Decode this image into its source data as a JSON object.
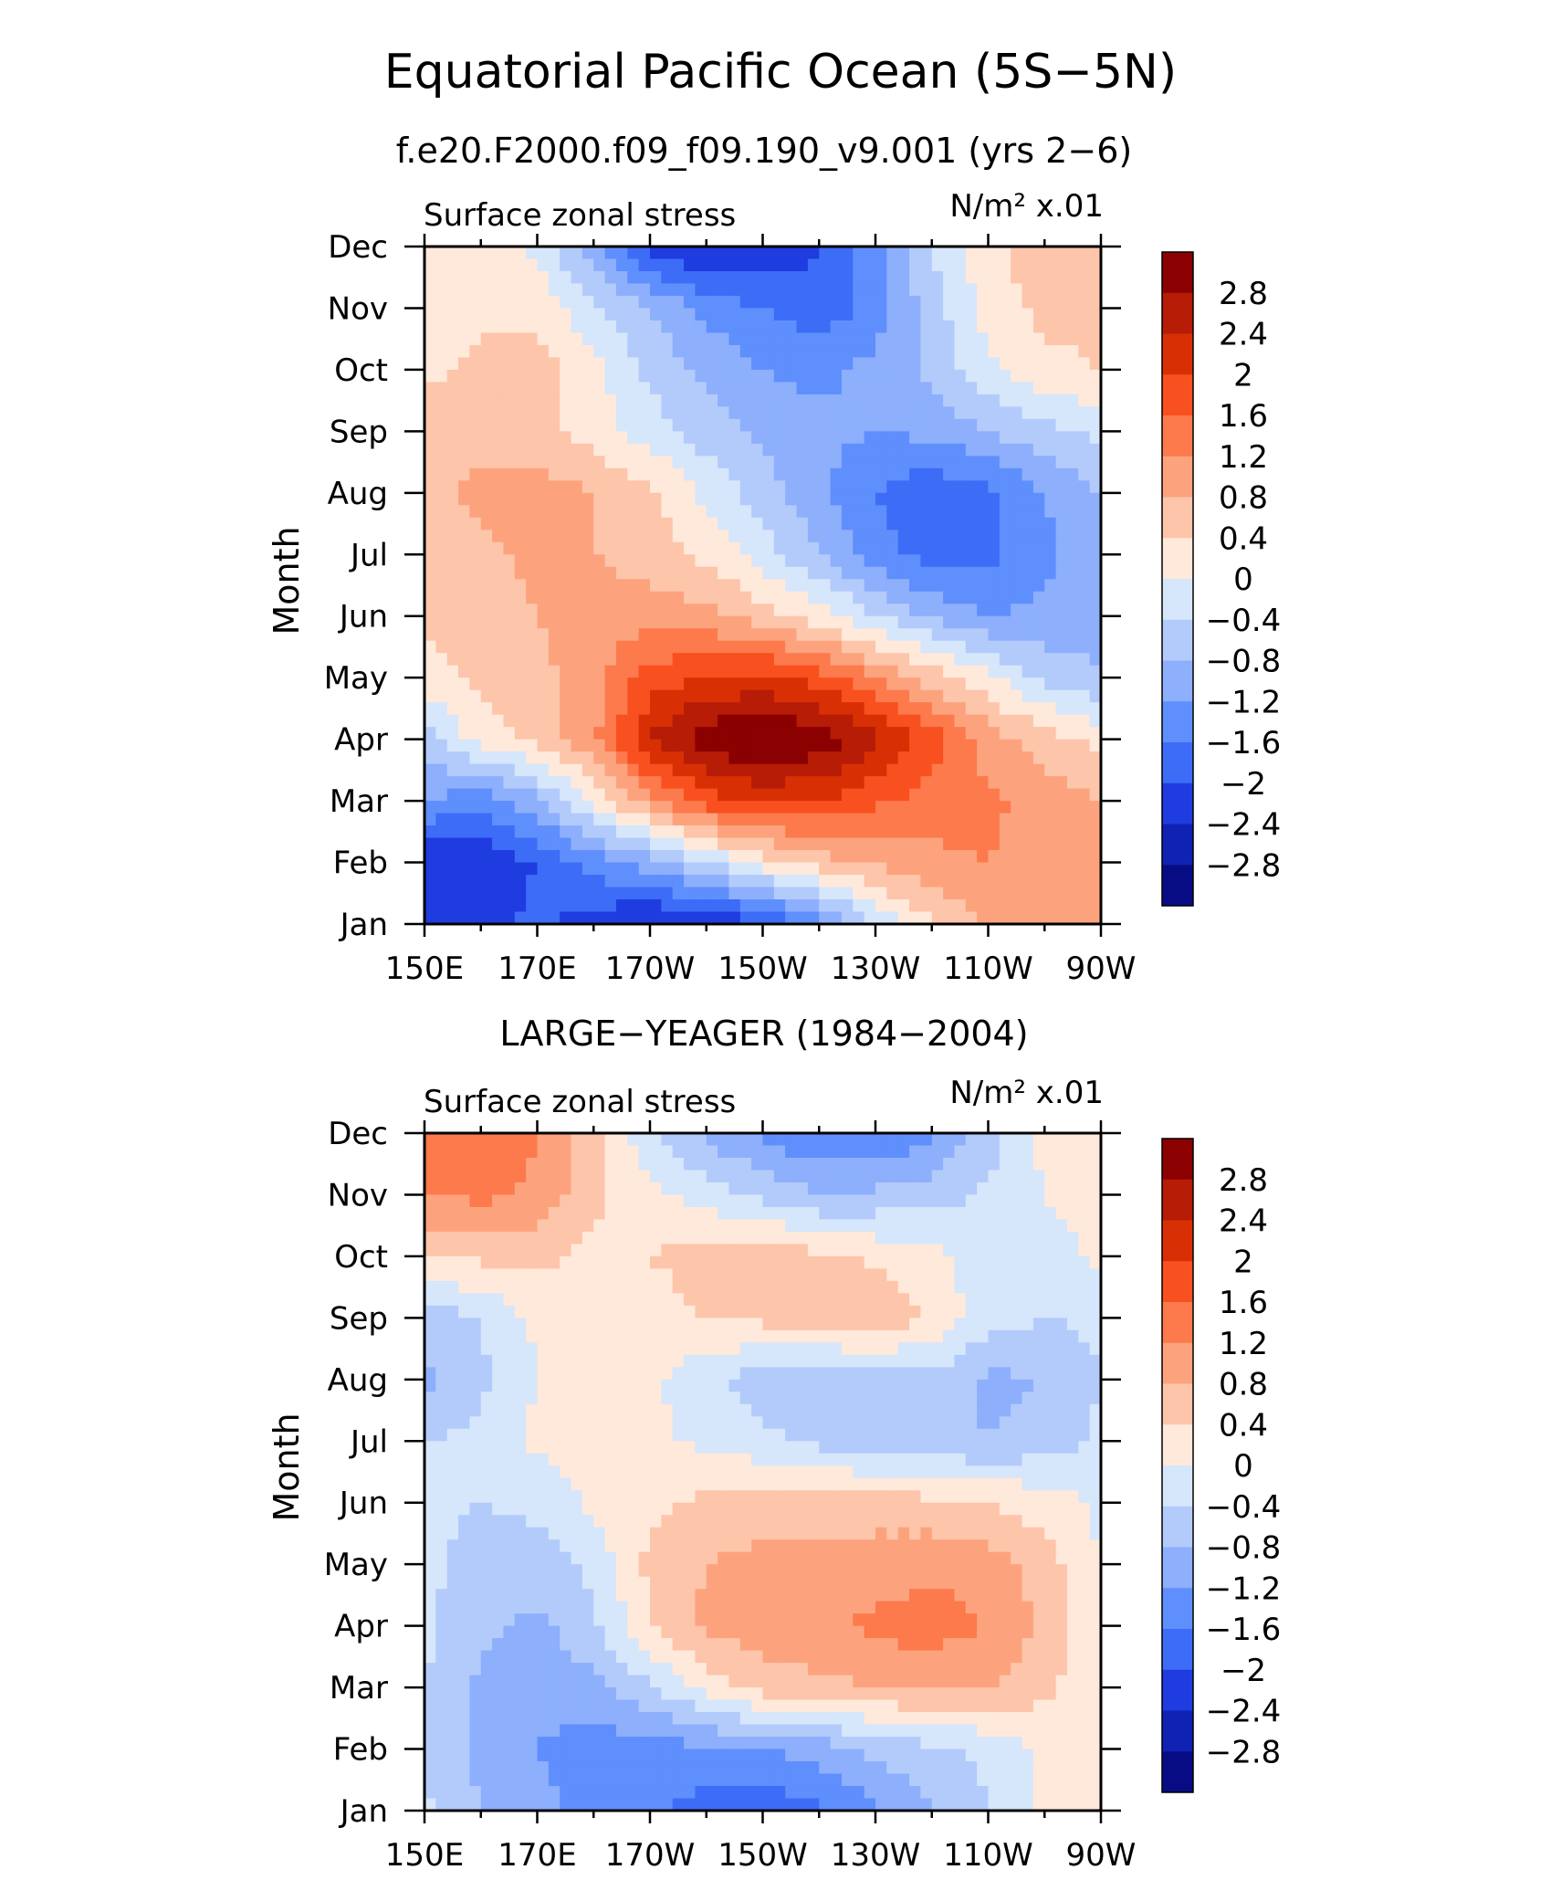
{
  "title": "Equatorial Pacific Ocean (5S−5N)",
  "chart_data": [
    {
      "type": "heatmap",
      "subtitle": "f.e20.F2000.f09_f09.190_v9.001 (yrs 2−6)",
      "field_label": "Surface zonal stress",
      "units_label": "N/m² x.01",
      "ylabel": "Month",
      "xlabel": "",
      "x_ticks": [
        "150E",
        "170E",
        "170W",
        "150W",
        "130W",
        "110W",
        "90W"
      ],
      "x_tick_lon": [
        150,
        170,
        190,
        210,
        230,
        250,
        270
      ],
      "y_ticks": [
        "Jan",
        "Feb",
        "Mar",
        "Apr",
        "May",
        "Jun",
        "Jul",
        "Aug",
        "Sep",
        "Oct",
        "Nov",
        "Dec"
      ],
      "xlim": [
        150,
        270
      ],
      "ylim": [
        1,
        12
      ],
      "levels": [
        -2.8,
        -2.4,
        -2,
        -1.6,
        -1.2,
        -0.8,
        -0.4,
        0,
        0.4,
        0.8,
        1.2,
        1.6,
        2,
        2.4,
        2.8
      ],
      "lon": [
        150,
        160,
        170,
        180,
        190,
        200,
        210,
        220,
        230,
        240,
        250,
        260,
        270
      ],
      "values": [
        [
          -2.1,
          -2.2,
          -1.9,
          -2.2,
          -2.5,
          -2.4,
          -2.1,
          -1.4,
          -0.4,
          0.4,
          0.8,
          0.9,
          0.8
        ],
        [
          -2.4,
          -2.3,
          -2.0,
          -1.4,
          -1.0,
          -0.4,
          0.2,
          0.6,
          0.9,
          1.1,
          1.2,
          1.1,
          0.8
        ],
        [
          -1.2,
          -1.5,
          -0.9,
          0.1,
          1.1,
          1.8,
          2.1,
          2.0,
          1.7,
          1.4,
          1.3,
          1.0,
          0.8
        ],
        [
          -0.6,
          0.2,
          0.5,
          1.1,
          2.4,
          3.1,
          3.3,
          3.1,
          2.5,
          1.8,
          1.0,
          0.6,
          0.3
        ],
        [
          0.2,
          0.5,
          0.7,
          1.0,
          1.8,
          2.0,
          2.1,
          1.8,
          1.2,
          0.6,
          0.1,
          -0.5,
          -0.8
        ],
        [
          0.5,
          0.6,
          0.8,
          1.0,
          1.0,
          0.9,
          0.6,
          0.2,
          -0.4,
          -0.9,
          -1.2,
          -1.1,
          -0.9
        ],
        [
          0.6,
          0.7,
          0.9,
          0.8,
          0.6,
          0.3,
          -0.2,
          -0.8,
          -1.4,
          -1.8,
          -1.7,
          -1.3,
          -0.9
        ],
        [
          0.7,
          0.9,
          1.0,
          0.8,
          0.5,
          -0.1,
          -0.6,
          -1.1,
          -1.6,
          -1.9,
          -1.7,
          -1.2,
          -0.8
        ],
        [
          0.6,
          0.7,
          0.5,
          0.2,
          -0.2,
          -0.6,
          -0.9,
          -1.1,
          -1.2,
          -1.1,
          -0.8,
          -0.5,
          -0.3
        ],
        [
          0.3,
          0.5,
          0.6,
          0.1,
          -0.5,
          -0.9,
          -1.2,
          -1.3,
          -1.1,
          -0.7,
          -0.1,
          0.3,
          0.4
        ],
        [
          0.2,
          0.3,
          0.3,
          -0.3,
          -0.8,
          -1.3,
          -1.6,
          -1.9,
          -1.4,
          -0.6,
          0.2,
          0.5,
          0.5
        ],
        [
          0.1,
          0.2,
          -0.1,
          -1.1,
          -2.2,
          -2.5,
          -2.4,
          -2.0,
          -1.4,
          -0.4,
          0.3,
          0.6,
          0.6
        ]
      ]
    },
    {
      "type": "heatmap",
      "subtitle": "LARGE−YEAGER (1984−2004)",
      "field_label": "Surface zonal stress",
      "units_label": "N/m² x.01",
      "ylabel": "Month",
      "xlabel": "",
      "x_ticks": [
        "150E",
        "170E",
        "170W",
        "150W",
        "130W",
        "110W",
        "90W"
      ],
      "x_tick_lon": [
        150,
        170,
        190,
        210,
        230,
        250,
        270
      ],
      "y_ticks": [
        "Jan",
        "Feb",
        "Mar",
        "Apr",
        "May",
        "Jun",
        "Jul",
        "Aug",
        "Sep",
        "Oct",
        "Nov",
        "Dec"
      ],
      "xlim": [
        150,
        270
      ],
      "ylim": [
        1,
        12
      ],
      "levels": [
        -2.8,
        -2.4,
        -2,
        -1.6,
        -1.2,
        -0.8,
        -0.4,
        0,
        0.4,
        0.8,
        1.2,
        1.6,
        2,
        2.4,
        2.8
      ],
      "lon": [
        150,
        160,
        170,
        180,
        190,
        200,
        210,
        220,
        230,
        240,
        250,
        260,
        270
      ],
      "values": [
        [
          -0.3,
          -0.8,
          -1.1,
          -1.3,
          -1.5,
          -1.8,
          -1.9,
          -1.7,
          -1.3,
          -0.8,
          -0.4,
          0.1,
          0.2
        ],
        [
          -0.5,
          -0.9,
          -1.2,
          -1.4,
          -1.4,
          -1.3,
          -1.2,
          -1.0,
          -0.7,
          -0.5,
          -0.3,
          0.1,
          0.2
        ],
        [
          -0.4,
          -0.9,
          -1.1,
          -0.9,
          -0.5,
          0.2,
          0.6,
          0.7,
          0.8,
          0.9,
          0.8,
          0.5,
          0.1
        ],
        [
          -0.3,
          -0.7,
          -0.9,
          -0.5,
          0.4,
          0.9,
          1.0,
          1.1,
          1.3,
          1.4,
          1.2,
          0.7,
          0.1
        ],
        [
          -0.3,
          -0.6,
          -0.6,
          -0.3,
          0.5,
          0.8,
          0.9,
          0.9,
          1.0,
          1.1,
          1.0,
          0.6,
          0.0
        ],
        [
          -0.3,
          -0.4,
          -0.3,
          0.1,
          0.3,
          0.5,
          0.6,
          0.6,
          0.6,
          0.5,
          0.4,
          0.2,
          -0.1
        ],
        [
          -0.4,
          -0.3,
          0.1,
          0.2,
          0.1,
          -0.1,
          -0.3,
          -0.5,
          -0.7,
          -0.7,
          -0.8,
          -0.6,
          -0.3
        ],
        [
          -0.9,
          -0.5,
          0.0,
          0.3,
          0.1,
          -0.3,
          -0.6,
          -0.8,
          -0.7,
          -0.5,
          -0.9,
          -0.8,
          -0.4
        ],
        [
          -0.6,
          -0.4,
          0.1,
          0.3,
          0.2,
          0.4,
          0.5,
          0.7,
          0.8,
          0.3,
          -0.2,
          -0.4,
          -0.3
        ],
        [
          0.4,
          0.5,
          0.5,
          0.3,
          0.4,
          0.6,
          0.7,
          0.5,
          0.3,
          0.1,
          -0.2,
          -0.3,
          0.1
        ],
        [
          1.2,
          1.3,
          1.1,
          0.5,
          0.1,
          -0.2,
          -0.5,
          -0.8,
          -0.7,
          -0.6,
          -0.3,
          0.0,
          0.3
        ],
        [
          1.3,
          1.6,
          1.2,
          0.6,
          -0.3,
          -0.9,
          -1.3,
          -1.6,
          -1.7,
          -1.3,
          -0.6,
          0.1,
          0.3
        ]
      ]
    }
  ],
  "colorbar": {
    "labels": [
      "2.8",
      "2.4",
      "2",
      "1.6",
      "1.2",
      "0.8",
      "0.4",
      "0",
      "−0.4",
      "−0.8",
      "−1.2",
      "−1.6",
      "−2",
      "−2.4",
      "−2.8"
    ],
    "colors": [
      "#8b0000",
      "#b61c06",
      "#d83004",
      "#f8501e",
      "#fc7a4c",
      "#fca37e",
      "#fdc5aa",
      "#fee9db",
      "#d6e6fb",
      "#b3cbfb",
      "#8daffc",
      "#5f8ffc",
      "#3d6cf6",
      "#1f3ce0",
      "#0f22b4",
      "#070c84"
    ]
  }
}
